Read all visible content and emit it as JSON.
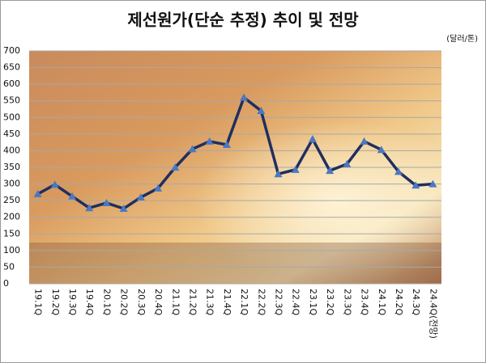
{
  "chart_data": {
    "type": "line",
    "title": "제선원가(단순 추정) 추이 및 전망",
    "unit_label": "(달러/톤)",
    "categories": [
      "19.1Q",
      "19.2Q",
      "19.3Q",
      "19.4Q",
      "20.1Q",
      "20.2Q",
      "20.3Q",
      "20.4Q",
      "21.1Q",
      "21.2Q",
      "21.3Q",
      "21.4Q",
      "22.1Q",
      "22.2Q",
      "22.3Q",
      "22.4Q",
      "23.1Q",
      "23.2Q",
      "23.3Q",
      "23.4Q",
      "24.1Q",
      "24.2Q",
      "24.3Q",
      "24.4Q(전망)"
    ],
    "values": [
      270,
      298,
      263,
      228,
      243,
      226,
      260,
      287,
      350,
      405,
      428,
      418,
      560,
      520,
      330,
      343,
      435,
      340,
      360,
      428,
      403,
      337,
      296,
      300
    ],
    "color": "#1f2f5e",
    "marker_color": "#4a78c2",
    "ylim": [
      0,
      700
    ],
    "yticks": [
      0,
      50,
      100,
      150,
      200,
      250,
      300,
      350,
      400,
      450,
      500,
      550,
      600,
      650,
      700
    ],
    "grid": true
  }
}
